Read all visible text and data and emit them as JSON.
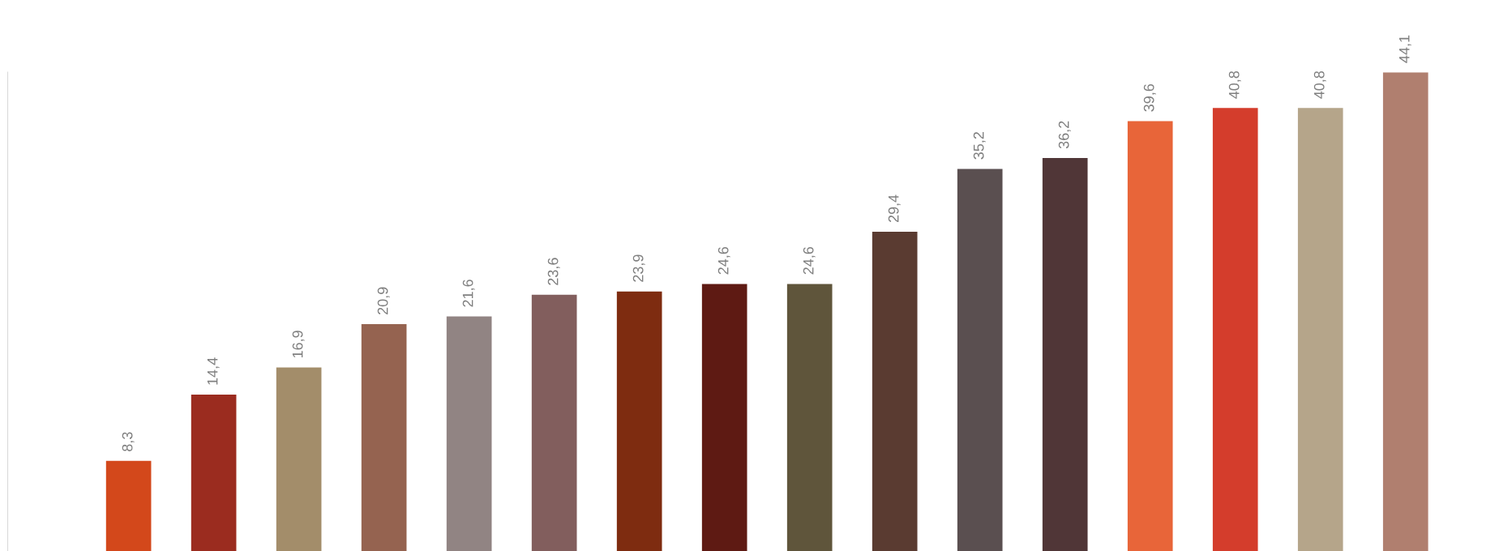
{
  "chart_data": {
    "type": "bar",
    "categories": [
      null,
      null,
      null,
      null,
      null,
      null,
      null,
      null,
      null,
      null,
      null,
      null,
      null,
      null,
      null,
      null
    ],
    "values": [
      8.3,
      14.4,
      16.9,
      20.9,
      21.6,
      23.6,
      23.9,
      24.6,
      24.6,
      29.4,
      35.2,
      36.2,
      39.6,
      40.8,
      40.8,
      44.1
    ],
    "value_labels": [
      "8,3",
      "14,4",
      "16,9",
      "20,9",
      "21,6",
      "23,6",
      "23,9",
      "24,6",
      "24,6",
      "29,4",
      "35,2",
      "36,2",
      "39,6",
      "40,8",
      "40,8",
      "44,1"
    ],
    "colors": [
      "#d3481b",
      "#9b2c1f",
      "#a38d6a",
      "#956350",
      "#918483",
      "#825e5d",
      "#7e2c10",
      "#5e1a13",
      "#5f553b",
      "#5a3b31",
      "#5a4f50",
      "#503637",
      "#e86539",
      "#d43d2c",
      "#b5a58a",
      "#b07f6f"
    ],
    "tick_labels": false,
    "grid": false,
    "legend": false
  }
}
